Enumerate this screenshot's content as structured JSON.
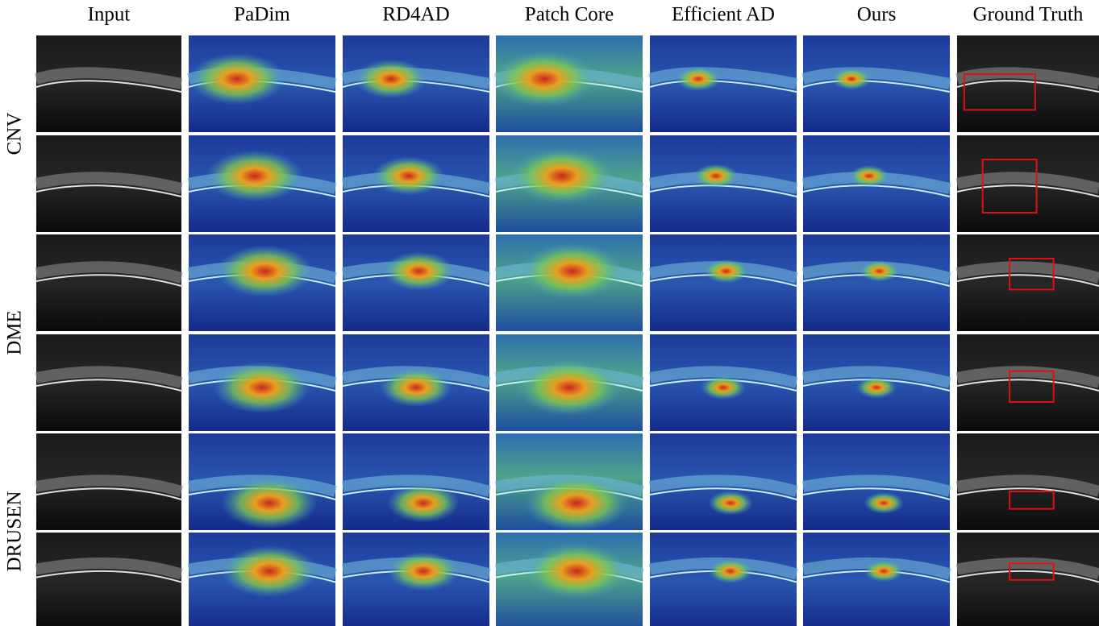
{
  "headers": [
    "Input",
    "PaDim",
    "RD4AD",
    "Patch Core",
    "Efficient AD",
    "Ours",
    "Ground Truth"
  ],
  "row_groups": [
    {
      "label": "CNV"
    },
    {
      "label": "DME"
    },
    {
      "label": "DRUSEN"
    }
  ]
}
